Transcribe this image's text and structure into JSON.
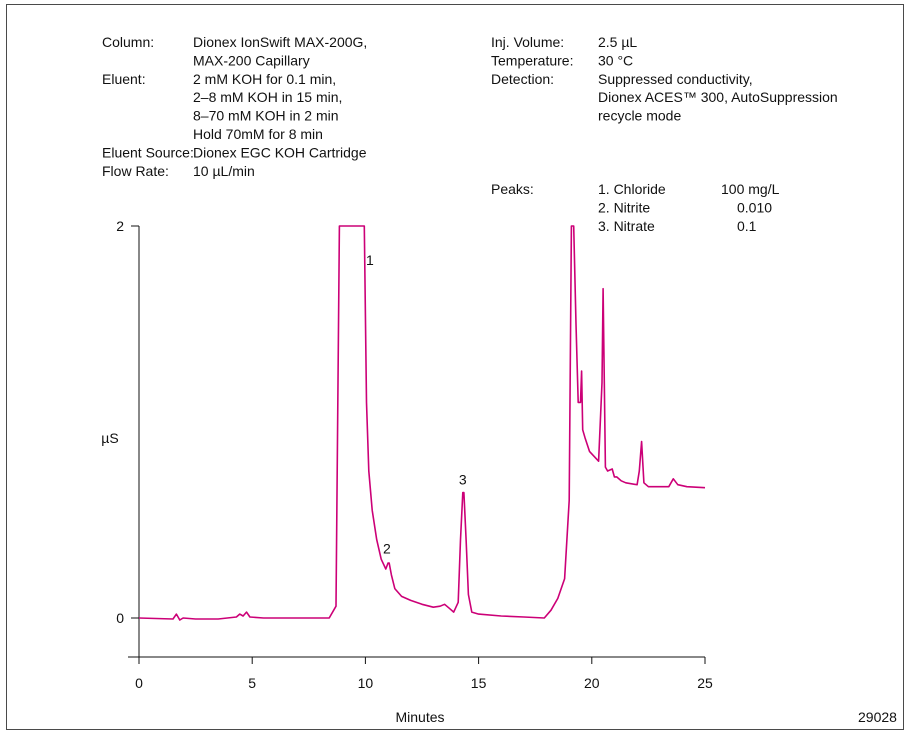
{
  "conditions": {
    "left": [
      {
        "label": "Column:",
        "value": [
          "Dionex IonSwift MAX-200G,",
          "MAX-200 Capillary"
        ]
      },
      {
        "label": "Eluent:",
        "value": [
          "2 mM KOH for 0.1 min,",
          "2–8 mM KOH in 15 min,",
          "8–70 mM KOH in 2 min",
          "Hold 70mM for 8 min"
        ]
      },
      {
        "label": "Eluent Source:",
        "value": [
          "Dionex EGC KOH Cartridge"
        ]
      },
      {
        "label": "Flow Rate:",
        "value": [
          "10 µL/min"
        ]
      }
    ],
    "right": [
      {
        "label": "Inj. Volume:",
        "value": [
          "2.5 µL"
        ]
      },
      {
        "label": "Temperature:",
        "value": [
          "30 °C"
        ]
      },
      {
        "label": "Detection:",
        "value": [
          "Suppressed conductivity,",
          "Dionex ACES™ 300, AutoSuppression",
          "recycle mode"
        ]
      }
    ],
    "peaks_label": "Peaks:",
    "peaks": [
      {
        "name": "1. Chloride",
        "amount": "100 mg/L"
      },
      {
        "name": "2. Nitrite",
        "amount": "0.010"
      },
      {
        "name": "3. Nitrate",
        "amount": "0.1"
      }
    ]
  },
  "figure_id": "29028",
  "chart_data": {
    "type": "line",
    "xlabel": "Minutes",
    "ylabel": "µS",
    "xlim": [
      0,
      25
    ],
    "ylim": [
      0,
      2
    ],
    "x_ticks": [
      0,
      5,
      10,
      15,
      20,
      25
    ],
    "y_ticks": [
      0,
      2
    ],
    "grid": false,
    "line_color": "#cc0077",
    "series": [
      {
        "x": [
          0,
          1.5,
          1.65,
          1.8,
          1.95,
          2.5,
          3.5,
          4.3,
          4.45,
          4.6,
          4.75,
          4.9,
          5.5,
          7,
          8.4,
          8.7,
          8.85,
          9.95,
          10.05,
          10.15,
          10.3,
          10.5,
          10.7,
          10.9,
          11.0,
          11.05,
          11.15,
          11.3,
          11.6,
          12,
          12.5,
          13.0,
          13.3,
          13.5,
          13.7,
          13.9,
          14.1,
          14.2,
          14.3,
          14.35,
          14.45,
          14.55,
          14.7,
          15,
          16,
          17,
          17.9,
          18.2,
          18.5,
          18.8,
          19.0,
          19.1,
          19.2,
          19.3,
          19.4,
          19.5,
          19.55,
          19.6,
          19.7,
          19.9,
          20.3,
          20.45,
          20.5,
          20.6,
          20.7,
          20.9,
          21.0,
          21.1,
          21.3,
          21.5,
          22.0,
          22.1,
          22.2,
          22.3,
          22.5,
          23.0,
          23.4,
          23.5,
          23.6,
          23.8,
          24.2,
          25.0
        ],
        "y": [
          0.0,
          -0.005,
          0.02,
          -0.01,
          0.0,
          -0.005,
          -0.005,
          0.005,
          0.02,
          0.01,
          0.03,
          0.005,
          0.0,
          0.0,
          0.0,
          0.06,
          2.0,
          2.0,
          1.1,
          0.75,
          0.55,
          0.4,
          0.3,
          0.25,
          0.28,
          0.28,
          0.22,
          0.15,
          0.11,
          0.09,
          0.07,
          0.055,
          0.06,
          0.07,
          0.05,
          0.03,
          0.08,
          0.4,
          0.64,
          0.64,
          0.4,
          0.12,
          0.03,
          0.02,
          0.01,
          0.005,
          0.0,
          0.04,
          0.1,
          0.2,
          0.6,
          2.0,
          2.0,
          1.5,
          1.1,
          1.1,
          1.26,
          0.96,
          0.92,
          0.85,
          0.8,
          1.2,
          1.68,
          0.77,
          0.75,
          0.76,
          0.72,
          0.72,
          0.7,
          0.69,
          0.68,
          0.75,
          0.9,
          0.69,
          0.67,
          0.67,
          0.67,
          0.69,
          0.71,
          0.68,
          0.67,
          0.665
        ]
      }
    ],
    "peak_labels": [
      {
        "text": "1",
        "x": 10.2,
        "y": 1.8
      },
      {
        "text": "2",
        "x": 10.95,
        "y": 0.33
      },
      {
        "text": "3",
        "x": 14.3,
        "y": 0.68
      }
    ]
  }
}
